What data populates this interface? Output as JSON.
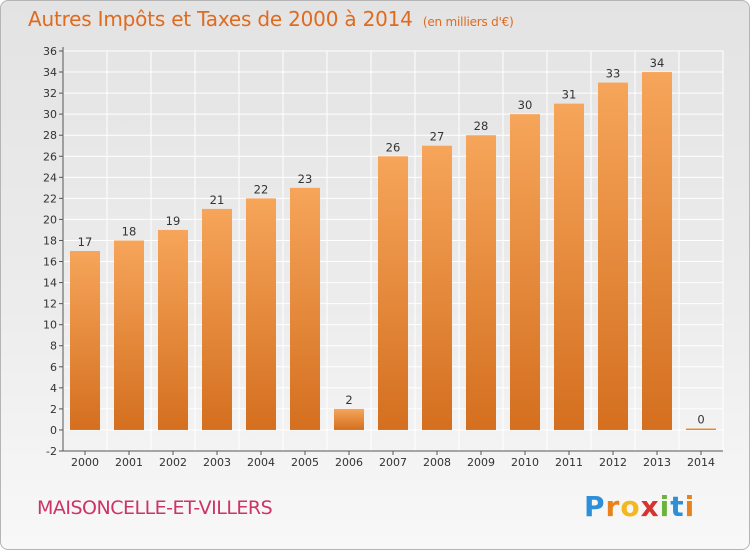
{
  "chart_data": {
    "type": "bar",
    "title": "Autres Impôts et Taxes de 2000 à 2014",
    "unit": "(en milliers d'€)",
    "categories": [
      "2000",
      "2001",
      "2002",
      "2003",
      "2004",
      "2005",
      "2006",
      "2007",
      "2008",
      "2009",
      "2010",
      "2011",
      "2012",
      "2013",
      "2014"
    ],
    "values": [
      17,
      18,
      19,
      21,
      22,
      23,
      2,
      26,
      27,
      28,
      30,
      31,
      33,
      34,
      0
    ],
    "ylim": [
      -2,
      36
    ],
    "ytick_step": 2,
    "xlabel": "",
    "ylabel": "",
    "grid": true
  },
  "location": "MAISONCELLE-ET-VILLERS",
  "logo": {
    "p": "P",
    "r": "r",
    "o": "o",
    "x": "x",
    "i1": "i",
    "t": "t",
    "i2": "i"
  },
  "colors": {
    "title": "#e06a1d",
    "location": "#cc3366",
    "bar_light": "#f6a55a",
    "bar_dark": "#d46f1f",
    "grid": "#ffffff"
  }
}
